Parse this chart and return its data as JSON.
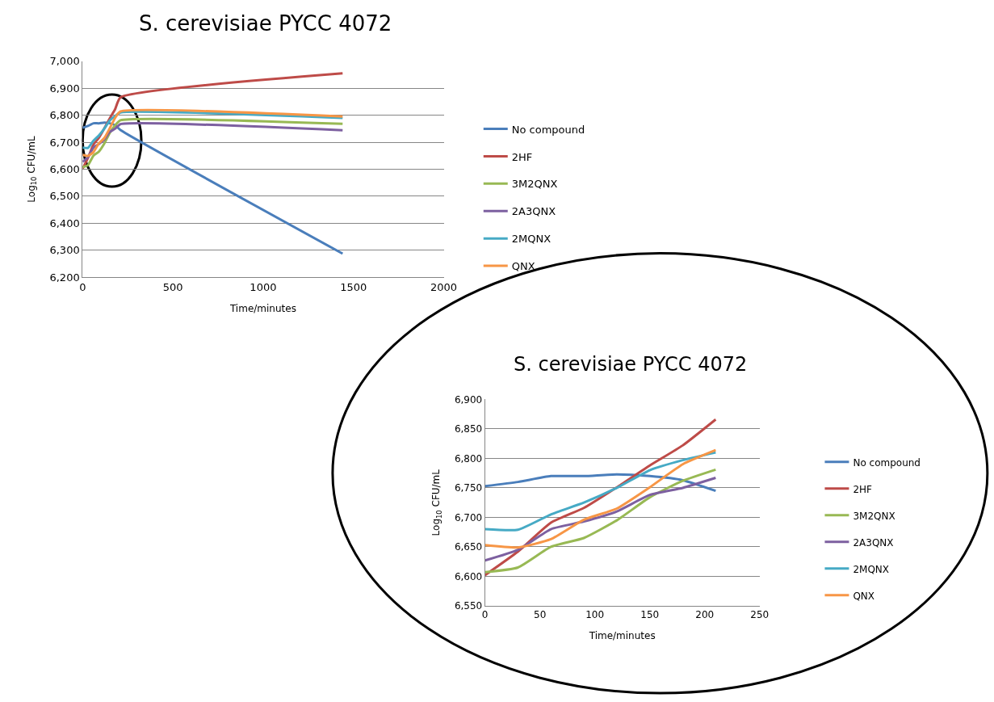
{
  "chart_data": [
    {
      "type": "line",
      "title": "S. cerevisiae PYCC 4072",
      "xlabel": "Time/minutes",
      "ylabel": "Log$_{10}$ CFU/mL",
      "x": [
        0,
        30,
        60,
        90,
        120,
        150,
        180,
        210,
        1440
      ],
      "series": [
        {
          "name": "No compound",
          "color": "#4a7ebb",
          "values": [
            6753,
            6760,
            6770,
            6770,
            6773,
            6770,
            6763,
            6745,
            6287
          ]
        },
        {
          "name": "2HF",
          "color": "#be4b48",
          "values": [
            6602,
            6642,
            6691,
            6716,
            6751,
            6788,
            6822,
            6866,
            6955
          ]
        },
        {
          "name": "3M2QNX",
          "color": "#98b954",
          "values": [
            6607,
            6615,
            6650,
            6665,
            6695,
            6734,
            6762,
            6781,
            6768
          ]
        },
        {
          "name": "2A3QNX",
          "color": "#7d60a0",
          "values": [
            6627,
            6645,
            6680,
            6693,
            6710,
            6738,
            6750,
            6767,
            6744
          ]
        },
        {
          "name": "2MQNX",
          "color": "#46aac5",
          "values": [
            6680,
            6679,
            6705,
            6725,
            6750,
            6780,
            6797,
            6810,
            6790
          ]
        },
        {
          "name": "QNX",
          "color": "#f79646",
          "values": [
            6653,
            6649,
            6663,
            6696,
            6715,
            6751,
            6790,
            6814,
            6795
          ]
        }
      ],
      "xlim": [
        0,
        2000
      ],
      "xticks": [
        0,
        500,
        1000,
        1500,
        2000
      ],
      "ylim": [
        6200,
        7000
      ],
      "yticks": [
        {
          "value": 6200,
          "label": "6,200"
        },
        {
          "value": 6300,
          "label": "6,300"
        },
        {
          "value": 6400,
          "label": "6,400"
        },
        {
          "value": 6500,
          "label": "6,500"
        },
        {
          "value": 6600,
          "label": "6,600"
        },
        {
          "value": 6700,
          "label": "6,700"
        },
        {
          "value": 6800,
          "label": "6,800"
        },
        {
          "value": 6900,
          "label": "6,900"
        },
        {
          "value": 7000,
          "label": "7,000"
        }
      ],
      "grid": "y",
      "legend": "right",
      "marker": "none",
      "line_style": "solid"
    },
    {
      "type": "line",
      "title": "S. cerevisiae PYCC 4072",
      "xlabel": "Time/minutes",
      "ylabel": "Log$_{10}$ CFU/mL",
      "x": [
        0,
        30,
        60,
        90,
        120,
        150,
        180,
        210
      ],
      "series": [
        {
          "name": "No compound",
          "color": "#4a7ebb",
          "values": [
            6753,
            6760,
            6770,
            6770,
            6773,
            6770,
            6763,
            6745
          ]
        },
        {
          "name": "2HF",
          "color": "#be4b48",
          "values": [
            6602,
            6642,
            6691,
            6716,
            6751,
            6788,
            6822,
            6866
          ]
        },
        {
          "name": "3M2QNX",
          "color": "#98b954",
          "values": [
            6607,
            6615,
            6650,
            6665,
            6695,
            6734,
            6762,
            6781
          ]
        },
        {
          "name": "2A3QNX",
          "color": "#7d60a0",
          "values": [
            6627,
            6645,
            6680,
            6693,
            6710,
            6738,
            6750,
            6767
          ]
        },
        {
          "name": "2MQNX",
          "color": "#46aac5",
          "values": [
            6680,
            6679,
            6705,
            6725,
            6750,
            6780,
            6797,
            6810
          ]
        },
        {
          "name": "QNX",
          "color": "#f79646",
          "values": [
            6653,
            6649,
            6663,
            6696,
            6715,
            6751,
            6790,
            6814
          ]
        }
      ],
      "xlim": [
        0,
        250
      ],
      "xticks": [
        0,
        50,
        100,
        150,
        200,
        250
      ],
      "ylim": [
        6550,
        6900
      ],
      "yticks": [
        {
          "value": 6550,
          "label": "6,550"
        },
        {
          "value": 6600,
          "label": "6,600"
        },
        {
          "value": 6650,
          "label": "6,650"
        },
        {
          "value": 6700,
          "label": "6,700"
        },
        {
          "value": 6750,
          "label": "6,750"
        },
        {
          "value": 6800,
          "label": "6,800"
        },
        {
          "value": 6850,
          "label": "6,850"
        },
        {
          "value": 6900,
          "label": "6,900"
        }
      ],
      "grid": "y",
      "legend": "right",
      "marker": "none",
      "line_style": "solid"
    }
  ]
}
